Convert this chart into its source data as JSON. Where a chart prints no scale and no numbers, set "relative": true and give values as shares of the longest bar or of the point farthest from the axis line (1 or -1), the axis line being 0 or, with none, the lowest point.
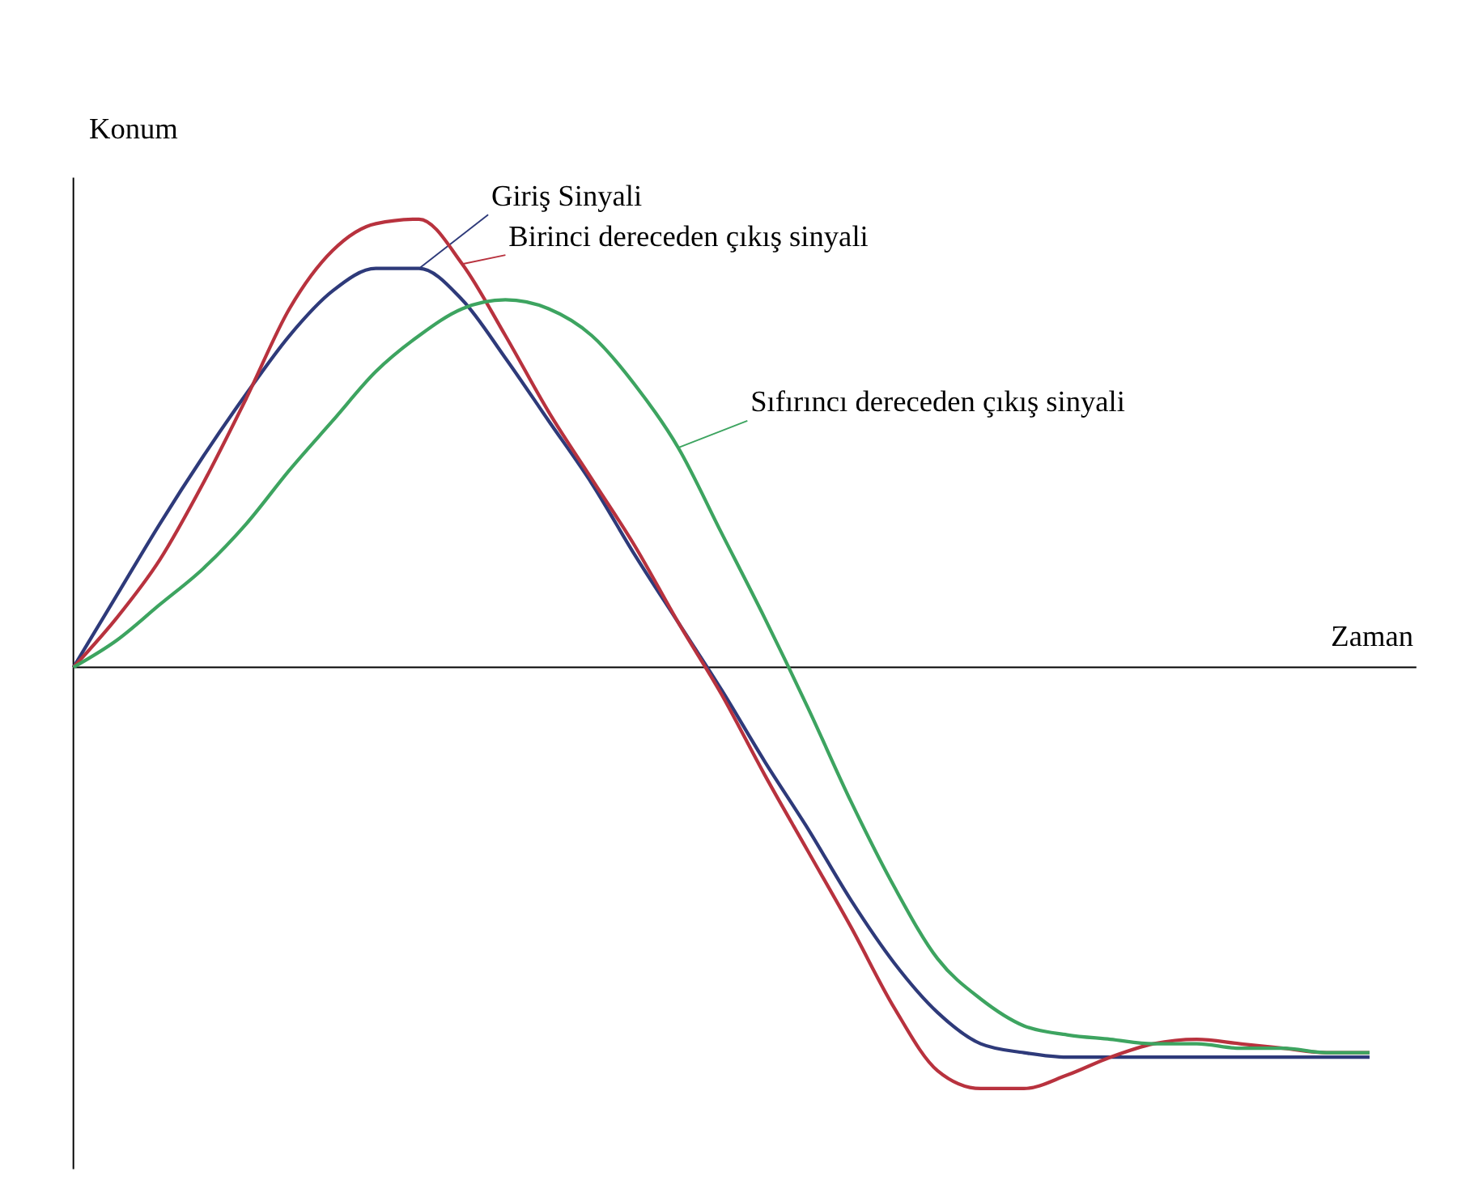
{
  "chart_data": {
    "type": "line",
    "relative": true,
    "xlabel": "Zaman",
    "ylabel": "Konum",
    "legend": false,
    "marker": "none",
    "line_style": "solid",
    "categories": [
      null,
      null,
      null,
      null,
      null,
      null,
      null,
      null,
      null,
      null,
      null,
      null,
      null,
      null,
      null,
      null,
      null,
      null,
      null,
      null,
      null,
      null,
      null,
      null,
      null,
      null,
      null,
      null,
      null,
      null,
      null
    ],
    "series": [
      {
        "name": "Giriş Sinyali",
        "color": "#2e3a7a",
        "values": [
          0,
          0.16,
          0.32,
          0.47,
          0.61,
          0.74,
          0.84,
          0.89,
          0.89,
          0.82,
          0.69,
          0.55,
          0.41,
          0.25,
          0.1,
          -0.05,
          -0.21,
          -0.36,
          -0.52,
          -0.66,
          -0.77,
          -0.84,
          -0.86,
          -0.87,
          -0.87,
          -0.87,
          -0.87,
          -0.87,
          -0.87,
          -0.87,
          -0.87
        ]
      },
      {
        "name": "Birinci dereceden çıkış sinyali",
        "color": "#b8323e",
        "values": [
          0,
          0.11,
          0.24,
          0.41,
          0.6,
          0.8,
          0.93,
          0.99,
          1.0,
          0.9,
          0.74,
          0.57,
          0.42,
          0.27,
          0.1,
          -0.06,
          -0.24,
          -0.41,
          -0.58,
          -0.76,
          -0.9,
          -0.94,
          -0.94,
          -0.91,
          -0.87,
          -0.84,
          -0.83,
          -0.84,
          -0.85,
          -0.86,
          -0.86
        ]
      },
      {
        "name": "Sıfırıncı dereceden çıkış sinyali",
        "color": "#3da460",
        "values": [
          0,
          0.06,
          0.14,
          0.22,
          0.32,
          0.44,
          0.55,
          0.66,
          0.74,
          0.8,
          0.82,
          0.8,
          0.74,
          0.63,
          0.49,
          0.3,
          0.11,
          -0.09,
          -0.3,
          -0.49,
          -0.65,
          -0.74,
          -0.8,
          -0.82,
          -0.83,
          -0.84,
          -0.84,
          -0.85,
          -0.85,
          -0.86,
          -0.86
        ]
      }
    ]
  }
}
